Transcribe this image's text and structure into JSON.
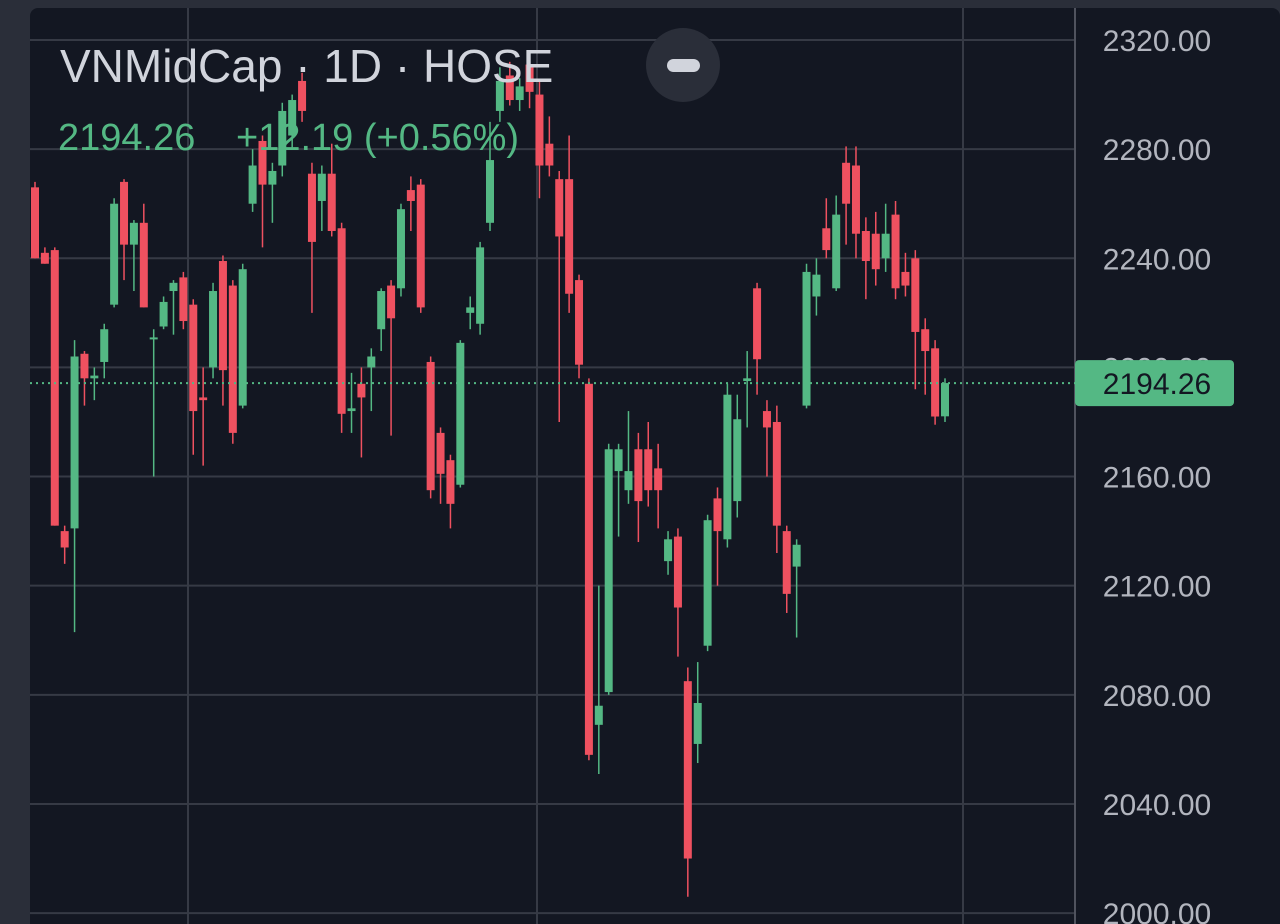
{
  "chart_data": {
    "type": "candlestick",
    "title": "VNMidCap · 1D · HOSE",
    "price": "2194.26",
    "change": "+12.19 (+0.56%)",
    "last": 2194.26,
    "up_color": "#54b884",
    "down_color": "#ef5160",
    "ylim": [
      1996,
      2331
    ],
    "yticks": [
      {
        "value": 2000,
        "label": "2000.00"
      },
      {
        "value": 2040,
        "label": "2040.00"
      },
      {
        "value": 2080,
        "label": "2080.00"
      },
      {
        "value": 2120,
        "label": "2120.00"
      },
      {
        "value": 2160,
        "label": "2160.00"
      },
      {
        "value": 2200,
        "label": "2200.00"
      },
      {
        "value": 2240,
        "label": "2240.00"
      },
      {
        "value": 2280,
        "label": "2280.00"
      },
      {
        "value": 2320,
        "label": "2320.00"
      }
    ],
    "grid": true,
    "open": [
      2266,
      2242,
      2243,
      2140,
      2141,
      2205,
      2196,
      2202,
      2223,
      2268,
      2245,
      2253,
      2211,
      2215,
      2228,
      2233,
      2223,
      2189,
      2200,
      2239,
      2230,
      2186,
      2260,
      2283,
      2267,
      2274,
      2285,
      2305,
      2271,
      2261,
      2271,
      2251,
      2184,
      2194,
      2200,
      2214,
      2230,
      2229,
      2265,
      2267,
      2202,
      2176,
      2166,
      2157,
      2220,
      2216,
      2253,
      2294,
      2307,
      2298,
      2311,
      2300,
      2282,
      2269,
      2269,
      2232,
      2194,
      2069,
      2081,
      2162,
      2155,
      2170,
      2170,
      2163,
      2129,
      2138,
      2085,
      2062,
      2098,
      2152,
      2137,
      2151,
      2195,
      2229,
      2184,
      2180,
      2140,
      2127,
      2186,
      2226,
      2251,
      2229,
      2275,
      2274,
      2250,
      2249,
      2240,
      2256,
      2235,
      2240,
      2214,
      2207,
      2182.07
    ],
    "high": [
      2268,
      2244,
      2244,
      2142,
      2210,
      2206,
      2200,
      2216,
      2262,
      2269,
      2254,
      2260,
      2214,
      2226,
      2232,
      2235,
      2225,
      2200,
      2231,
      2241,
      2232,
      2238,
      2280,
      2285,
      2275,
      2297,
      2300,
      2308,
      2275,
      2274,
      2282,
      2253,
      2198,
      2200,
      2207,
      2229,
      2232,
      2260,
      2270,
      2269,
      2204,
      2178,
      2168,
      2210,
      2226,
      2246,
      2290,
      2310,
      2312,
      2306,
      2314,
      2305,
      2292,
      2272,
      2285,
      2234,
      2196,
      2120,
      2172,
      2172,
      2184,
      2176,
      2180,
      2172,
      2140,
      2141,
      2090,
      2092,
      2146,
      2156,
      2194,
      2190,
      2206,
      2231,
      2188,
      2186,
      2142,
      2137,
      2238,
      2240,
      2262,
      2263,
      2281,
      2281,
      2255,
      2257,
      2260,
      2261,
      2242,
      2243,
      2218,
      2210,
      2196
    ],
    "low": [
      2240,
      2238,
      2142,
      2128,
      2103,
      2186,
      2188,
      2196,
      2222,
      2232,
      2228,
      2222,
      2160,
      2214,
      2212,
      2214,
      2168,
      2164,
      2196,
      2186,
      2172,
      2185,
      2257,
      2244,
      2253,
      2270,
      2280,
      2290,
      2220,
      2250,
      2248,
      2176,
      2176,
      2167,
      2184,
      2206,
      2175,
      2226,
      2250,
      2220,
      2152,
      2150,
      2141,
      2156,
      2214,
      2212,
      2250,
      2290,
      2296,
      2294,
      2295,
      2262,
      2270,
      2180,
      2220,
      2196,
      2056,
      2051,
      2080,
      2138,
      2150,
      2136,
      2149,
      2141,
      2124,
      2094,
      2006,
      2055,
      2096,
      2120,
      2134,
      2145,
      2178,
      2190,
      2160,
      2132,
      2110,
      2101,
      2185,
      2219,
      2240,
      2228,
      2245,
      2240,
      2225,
      2230,
      2235,
      2225,
      2226,
      2192,
      2190,
      2179,
      2180
    ],
    "close": [
      2240,
      2238,
      2142,
      2134,
      2204,
      2196,
      2197,
      2214,
      2260,
      2245,
      2253,
      2222,
      2211,
      2224,
      2231,
      2217,
      2184,
      2188,
      2228,
      2199,
      2176,
      2236,
      2274,
      2267,
      2272,
      2294,
      2298,
      2294,
      2246,
      2271,
      2250,
      2183,
      2185,
      2189,
      2204,
      2228,
      2218,
      2258,
      2261,
      2222,
      2155,
      2161,
      2150,
      2209,
      2222,
      2244,
      2276,
      2305,
      2298,
      2303,
      2301,
      2274,
      2274,
      2248,
      2227,
      2201,
      2058,
      2076,
      2170,
      2170,
      2162,
      2151,
      2155,
      2155,
      2137,
      2112,
      2020,
      2077,
      2144,
      2140,
      2190,
      2181,
      2196,
      2203,
      2178,
      2142,
      2117,
      2135,
      2235,
      2234,
      2243,
      2256,
      2260,
      2249,
      2239,
      2236,
      2249,
      2229,
      2230,
      2213,
      2206,
      2182,
      2194.26
    ]
  }
}
